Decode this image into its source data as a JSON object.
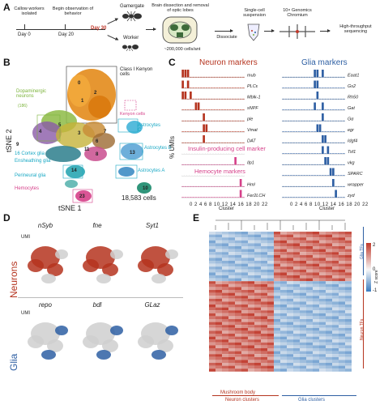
{
  "panel_labels": {
    "a": "A",
    "b": "B",
    "c": "C",
    "d": "D",
    "e": "E"
  },
  "panel_a": {
    "step1": "Callow workers isolated",
    "step2": "Begin observation of behavior",
    "day0": "Day 0",
    "day20": "Day 20",
    "day30": "Day 30",
    "gamergate": "Gamergate",
    "worker": "Worker",
    "brain_step": "Brain dissection and removal of optic lobes",
    "cells_note": "~200,000 cells/ant",
    "dissociate": "Dissociate",
    "suspension": "Single-cell suspension",
    "chromium": "10× Genomics Chromium",
    "sequencing": "High-throughput sequencing"
  },
  "panel_b": {
    "ylabel": "tSNE 2",
    "xlabel": "tSNE 1",
    "cell_count": "18,583 cells",
    "labels": {
      "kenyon": "Class I Kenyon cells",
      "dopaminergic": "Dopaminergic neurons",
      "dopaminergic_n": "(186)",
      "astro_c": "Astrocytes C",
      "astro_b": "Astrocytes B",
      "astro_a": "Astrocytes A",
      "cortex": "16 Cortex glia",
      "ensheathing": "Ensheathing glia",
      "perineural": "Perineural glia",
      "hemocytes": "Hemocytes",
      "kenyon2": "Kenyon cells"
    },
    "numbers": [
      "0",
      "1",
      "2",
      "3",
      "4",
      "5",
      "6",
      "7",
      "8",
      "9",
      "10",
      "11",
      "12",
      "13",
      "14",
      "15",
      "17",
      "18",
      "19",
      "20",
      "21",
      "22",
      "23"
    ]
  },
  "panel_c": {
    "neuron_title": "Neuron markers",
    "glia_title": "Glia markers",
    "ipc_title": "Insulin-producing cell marker",
    "hemo_title": "Hemocyte markers",
    "ylabel": "% UMIs",
    "xlabel": "Cluster",
    "neuron_genes": [
      "mub",
      "PLCε",
      "Mblk-1",
      "sNPF",
      "ple",
      "Vmat",
      "DAT"
    ],
    "ipc_genes": [
      "Ilp1"
    ],
    "hemo_genes": [
      "Hml",
      "Fer2LCH"
    ],
    "glia_genes": [
      "Eaat1",
      "Gs2",
      "Rh50",
      "Gat",
      "Gα",
      "egr",
      "Idgf4",
      "Tsf1",
      "vkg",
      "SPARC",
      "wrapper",
      "zyd"
    ],
    "cluster_ticks": "0 2 4 6 8 10 12 14 16 18 20 22"
  },
  "panel_d": {
    "neuron_genes": [
      "nSyb",
      "fne",
      "Syt1"
    ],
    "glia_genes": [
      "repo",
      "bdl",
      "GLaz"
    ],
    "row_neurons": "Neurons",
    "row_glia": "Glia",
    "umi": "UMI"
  },
  "panel_e": {
    "zscore": "Z score",
    "scale_pos": "2",
    "scale_zero": "0",
    "scale_neg": "-1",
    "glia_tfs": "Glia TFs",
    "neuron_tfs": "Neuron TFs",
    "neuron_clusters": "Neuron clusters",
    "glia_clusters": "Glia clusters",
    "mb_body": "Mushroom body"
  },
  "colors": {
    "neuron": "#b5341f",
    "glia": "#2e5fa3",
    "pink": "#d6418a",
    "kenyon": "#e38b1b",
    "green": "#7bb33a",
    "cyan": "#19a8c4",
    "heat_red": "#c0392b",
    "heat_blue": "#3a7cc0"
  }
}
